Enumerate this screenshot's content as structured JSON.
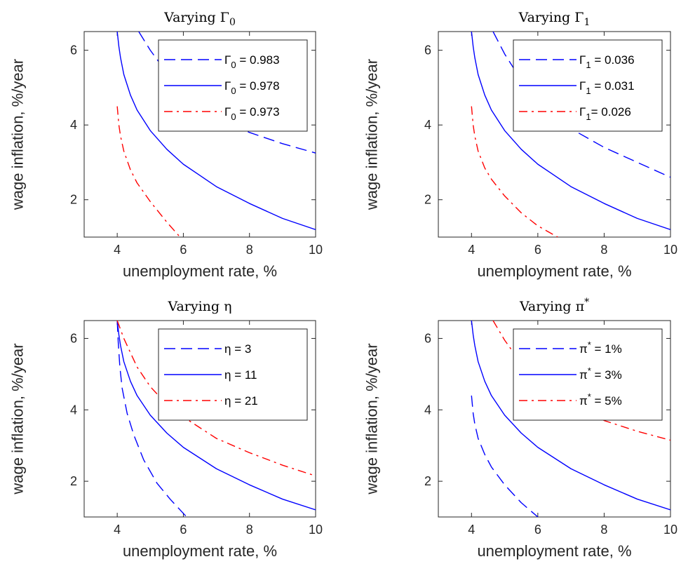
{
  "chart_data": [
    {
      "type": "line",
      "title": "Varying Γ",
      "title_sub": "0",
      "title_sup": "",
      "xlabel": "unemployment rate, %",
      "ylabel": "wage inflation, %/year",
      "xlim": [
        3,
        10
      ],
      "ylim": [
        1,
        6.5
      ],
      "xticks": [
        4,
        6,
        8,
        10
      ],
      "yticks": [
        2,
        4,
        6
      ],
      "legend_position": "top-right",
      "series": [
        {
          "name": "Γ",
          "name_sub": "0",
          "name_value": " = 0.983",
          "style": "dashed",
          "color": "#0000ff",
          "x": [
            4.65,
            5.0,
            5.5,
            6.0,
            6.5,
            7.0,
            8.0,
            9.0,
            10.0
          ],
          "y": [
            6.5,
            6.0,
            5.4,
            4.9,
            4.5,
            4.2,
            3.8,
            3.5,
            3.25
          ]
        },
        {
          "name": "Γ",
          "name_sub": "0",
          "name_value": " = 0.978",
          "style": "solid",
          "color": "#0000ff",
          "x": [
            4.0,
            4.05,
            4.1,
            4.2,
            4.4,
            4.6,
            5.0,
            5.5,
            6.0,
            6.5,
            7.0,
            8.0,
            9.0,
            10.0
          ],
          "y": [
            6.5,
            6.1,
            5.8,
            5.35,
            4.8,
            4.4,
            3.85,
            3.35,
            2.95,
            2.65,
            2.35,
            1.9,
            1.5,
            1.2
          ]
        },
        {
          "name": "Γ",
          "name_sub": "0",
          "name_value": " = 0.973",
          "style": "dashdot",
          "color": "#ff0000",
          "x": [
            4.0,
            4.05,
            4.1,
            4.2,
            4.4,
            4.6,
            5.0,
            5.5,
            5.9
          ],
          "y": [
            4.5,
            4.0,
            3.7,
            3.3,
            2.8,
            2.45,
            1.95,
            1.4,
            1.0
          ]
        }
      ]
    },
    {
      "type": "line",
      "title": "Varying Γ",
      "title_sub": "1",
      "title_sup": "",
      "xlabel": "unemployment rate, %",
      "ylabel": "wage inflation, %/year",
      "xlim": [
        3,
        10
      ],
      "ylim": [
        1,
        6.5
      ],
      "xticks": [
        4,
        6,
        8,
        10
      ],
      "yticks": [
        2,
        4,
        6
      ],
      "legend_position": "top-right",
      "series": [
        {
          "name": "Γ",
          "name_sub": "1",
          "name_value": " = 0.036",
          "style": "dashed",
          "color": "#0000ff",
          "x": [
            4.65,
            5.0,
            5.5,
            6.0,
            6.5,
            7.0,
            8.0,
            9.0,
            10.0
          ],
          "y": [
            6.5,
            5.9,
            5.2,
            4.7,
            4.3,
            3.9,
            3.4,
            3.0,
            2.6
          ]
        },
        {
          "name": "Γ",
          "name_sub": "1",
          "name_value": " = 0.031",
          "style": "solid",
          "color": "#0000ff",
          "x": [
            4.0,
            4.05,
            4.1,
            4.2,
            4.4,
            4.6,
            5.0,
            5.5,
            6.0,
            6.5,
            7.0,
            8.0,
            9.0,
            10.0
          ],
          "y": [
            6.5,
            6.1,
            5.8,
            5.35,
            4.8,
            4.4,
            3.85,
            3.35,
            2.95,
            2.65,
            2.35,
            1.9,
            1.5,
            1.2
          ]
        },
        {
          "name": "Γ",
          "name_sub": "1",
          "name_value": "= 0.026",
          "style": "dashdot",
          "color": "#ff0000",
          "x": [
            4.0,
            4.05,
            4.1,
            4.2,
            4.4,
            4.6,
            5.0,
            5.5,
            6.0,
            6.6
          ],
          "y": [
            4.5,
            4.0,
            3.7,
            3.3,
            2.85,
            2.55,
            2.1,
            1.65,
            1.3,
            1.0
          ]
        }
      ]
    },
    {
      "type": "line",
      "title": "Varying η",
      "title_sub": "",
      "title_sup": "",
      "xlabel": "unemployment rate, %",
      "ylabel": "wage inflation, %/year",
      "xlim": [
        3,
        10
      ],
      "ylim": [
        1,
        6.5
      ],
      "xticks": [
        4,
        6,
        8,
        10
      ],
      "yticks": [
        2,
        4,
        6
      ],
      "legend_position": "top-right",
      "series": [
        {
          "name": "η",
          "name_sub": "",
          "name_value": " = 3",
          "style": "dashed",
          "color": "#0000ff",
          "x": [
            4.0,
            4.03,
            4.08,
            4.15,
            4.3,
            4.5,
            4.8,
            5.2,
            5.6,
            6.1
          ],
          "y": [
            6.5,
            5.9,
            5.2,
            4.6,
            3.9,
            3.3,
            2.6,
            1.95,
            1.5,
            1.0
          ]
        },
        {
          "name": "η",
          "name_sub": "",
          "name_value": " = 11",
          "style": "solid",
          "color": "#0000ff",
          "x": [
            4.0,
            4.05,
            4.1,
            4.2,
            4.4,
            4.6,
            5.0,
            5.5,
            6.0,
            6.5,
            7.0,
            8.0,
            9.0,
            10.0
          ],
          "y": [
            6.5,
            6.1,
            5.8,
            5.35,
            4.8,
            4.4,
            3.85,
            3.35,
            2.95,
            2.65,
            2.35,
            1.9,
            1.5,
            1.2
          ]
        },
        {
          "name": "η",
          "name_sub": "",
          "name_value": " = 21",
          "style": "dashdot",
          "color": "#ff0000",
          "x": [
            4.0,
            4.1,
            4.2,
            4.4,
            4.6,
            5.0,
            5.5,
            6.0,
            6.5,
            7.0,
            8.0,
            9.0,
            10.0
          ],
          "y": [
            6.5,
            6.25,
            6.0,
            5.6,
            5.2,
            4.65,
            4.15,
            3.8,
            3.5,
            3.2,
            2.8,
            2.45,
            2.15
          ]
        }
      ]
    },
    {
      "type": "line",
      "title": "Varying π",
      "title_sub": "",
      "title_sup": "*",
      "xlabel": "unemployment rate, %",
      "ylabel": "wage inflation, %/year",
      "xlim": [
        3,
        10
      ],
      "ylim": [
        1,
        6.5
      ],
      "xticks": [
        4,
        6,
        8,
        10
      ],
      "yticks": [
        2,
        4,
        6
      ],
      "legend_position": "top-right",
      "series": [
        {
          "name": "π",
          "name_sup": "*",
          "name_value": " = 1%",
          "style": "dashed",
          "color": "#0000ff",
          "x": [
            4.0,
            4.05,
            4.1,
            4.2,
            4.4,
            4.6,
            5.0,
            5.5,
            6.0
          ],
          "y": [
            4.4,
            3.9,
            3.6,
            3.2,
            2.75,
            2.4,
            1.9,
            1.4,
            1.0
          ]
        },
        {
          "name": "π",
          "name_sup": "*",
          "name_value": " = 3%",
          "style": "solid",
          "color": "#0000ff",
          "x": [
            4.0,
            4.05,
            4.1,
            4.2,
            4.4,
            4.6,
            5.0,
            5.5,
            6.0,
            6.5,
            7.0,
            8.0,
            9.0,
            10.0
          ],
          "y": [
            6.5,
            6.1,
            5.8,
            5.35,
            4.8,
            4.4,
            3.85,
            3.35,
            2.95,
            2.65,
            2.35,
            1.9,
            1.5,
            1.2
          ]
        },
        {
          "name": "π",
          "name_sup": "*",
          "name_value": " = 5%",
          "style": "dashdot",
          "color": "#ff0000",
          "x": [
            4.65,
            5.0,
            5.5,
            6.0,
            6.5,
            7.0,
            8.0,
            9.0,
            10.0
          ],
          "y": [
            6.5,
            5.95,
            5.3,
            4.85,
            4.45,
            4.15,
            3.7,
            3.4,
            3.15
          ]
        }
      ]
    }
  ]
}
